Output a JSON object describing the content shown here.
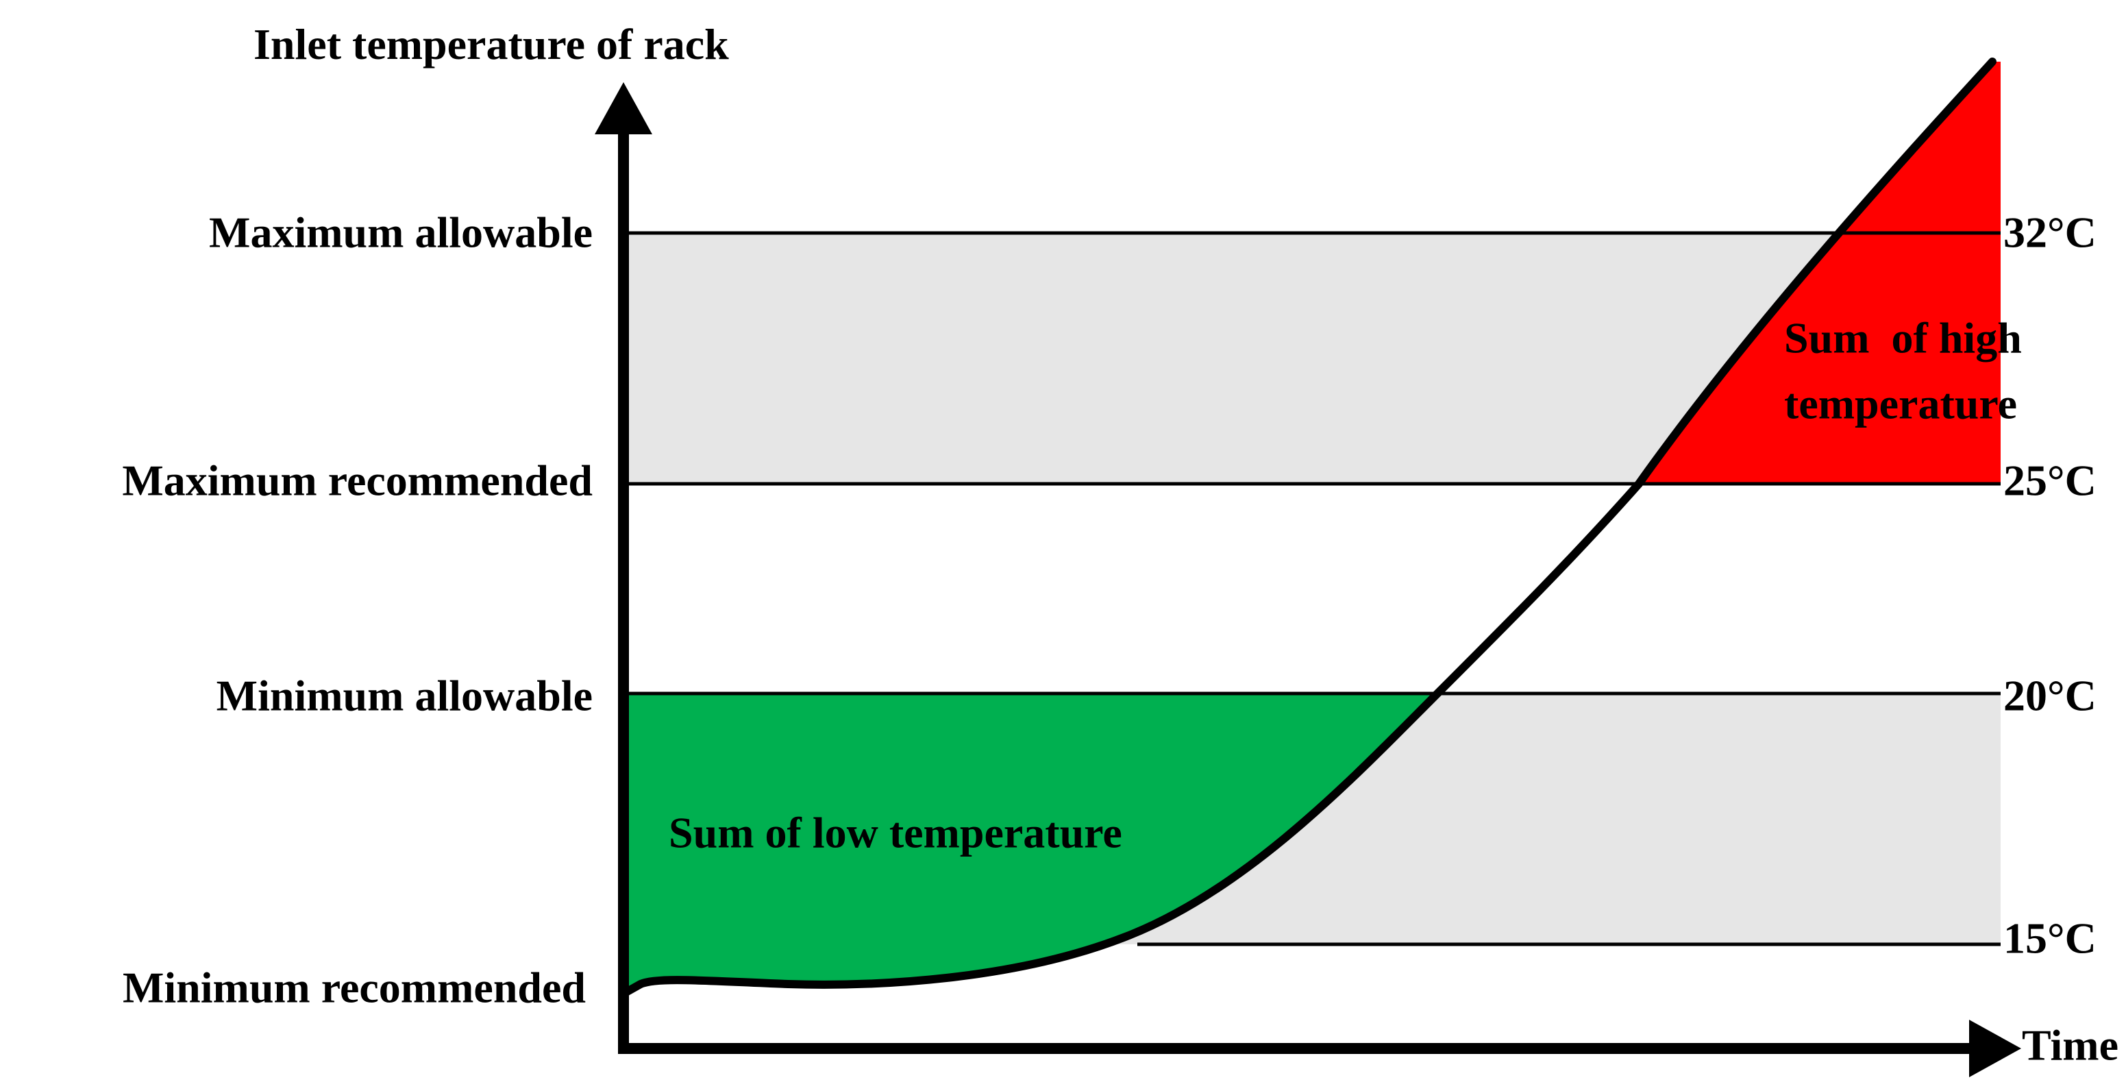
{
  "diagram": {
    "y_axis_title": "Inlet temperature of rack",
    "x_axis_title": "Time",
    "left_labels": {
      "maximum_allowable": "Maximum allowable",
      "maximum_recommended": "Maximum recommended",
      "minimum_allowable": "Minimum allowable",
      "minimum_recommended": "Minimum recommended"
    },
    "right_labels": {
      "t32": "32°C",
      "t25": "25°C",
      "t20": "20°C",
      "t15": "15°C"
    },
    "regions": {
      "low_sum_label": "Sum of low temperature",
      "high_sum_label_line1": "Sum  of high",
      "high_sum_label_line2": "temperature"
    },
    "colors": {
      "band": "#e6e6e6",
      "low_region": "#00b050",
      "high_region": "#ff0000",
      "axis": "#000000"
    }
  }
}
